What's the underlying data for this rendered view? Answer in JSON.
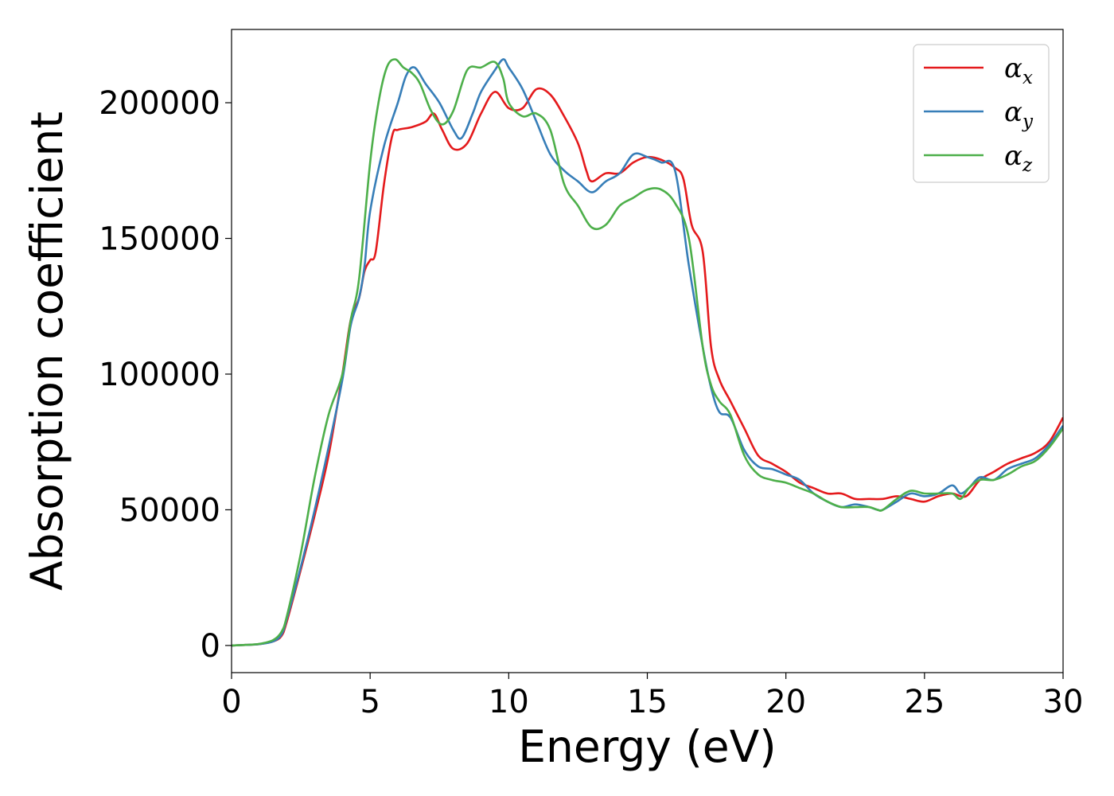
{
  "chart_data": {
    "type": "line",
    "title": "",
    "xlabel": "Energy (eV)",
    "ylabel": "Absorption coefficient",
    "xlim": [
      0,
      30
    ],
    "ylim": [
      -10000,
      227000
    ],
    "xticks": [
      0,
      5,
      10,
      15,
      20,
      25,
      30
    ],
    "yticks": [
      0,
      50000,
      100000,
      150000,
      200000
    ],
    "xtick_labels": [
      "0",
      "5",
      "10",
      "15",
      "20",
      "25",
      "30"
    ],
    "ytick_labels": [
      "0",
      "50000",
      "100000",
      "150000",
      "200000"
    ],
    "grid": false,
    "legend_position": "top-right",
    "series": [
      {
        "name": "αx",
        "symbol": "α",
        "subscript": "x",
        "color": "#e41a1c",
        "x": [
          0,
          0.5,
          1,
          1.5,
          1.8,
          2,
          2.5,
          3,
          3.5,
          4,
          4.3,
          4.6,
          4.8,
          5,
          5.2,
          5.5,
          5.8,
          6,
          6.5,
          7,
          7.3,
          7.6,
          8,
          8.5,
          9,
          9.5,
          10,
          10.5,
          11,
          11.5,
          12,
          12.5,
          12.8,
          13,
          13.5,
          14,
          14.5,
          15,
          15.5,
          16,
          16.3,
          16.6,
          17,
          17.3,
          17.6,
          18,
          18.5,
          19,
          19.5,
          20,
          20.5,
          21,
          21.5,
          22,
          22.5,
          23,
          23.5,
          24,
          24.5,
          25,
          25.5,
          26,
          26.5,
          27,
          27.5,
          28,
          28.5,
          29,
          29.5,
          30
        ],
        "values": [
          0,
          200,
          500,
          1500,
          3500,
          9000,
          28000,
          48000,
          70000,
          100000,
          120000,
          128000,
          138000,
          142000,
          145000,
          170000,
          188000,
          190000,
          191000,
          193000,
          196000,
          190000,
          183000,
          185000,
          196000,
          204000,
          198000,
          198000,
          205000,
          203000,
          195000,
          185000,
          175000,
          171000,
          174000,
          174000,
          178000,
          180000,
          179000,
          176000,
          172000,
          155000,
          145000,
          110000,
          98000,
          90000,
          80000,
          70000,
          67000,
          64000,
          60000,
          58000,
          56000,
          56000,
          54000,
          54000,
          54000,
          55000,
          54000,
          53000,
          55000,
          56000,
          55000,
          61000,
          64000,
          67000,
          69000,
          71000,
          75000,
          84000
        ]
      },
      {
        "name": "αy",
        "symbol": "α",
        "subscript": "y",
        "color": "#377eb8",
        "x": [
          0,
          0.5,
          1,
          1.5,
          1.8,
          2,
          2.5,
          3,
          3.5,
          4,
          4.3,
          4.6,
          4.8,
          5,
          5.5,
          6,
          6.3,
          6.6,
          7,
          7.5,
          8,
          8.3,
          8.7,
          9,
          9.5,
          9.8,
          10,
          10.5,
          11,
          11.5,
          12,
          12.5,
          13,
          13.5,
          14,
          14.5,
          15,
          15.5,
          16,
          16.5,
          17,
          17.3,
          17.6,
          18,
          18.5,
          19,
          19.5,
          20,
          20.5,
          21,
          21.5,
          22,
          22.5,
          23,
          23.3,
          23.5,
          24,
          24.5,
          25,
          25.5,
          26,
          26.3,
          26.6,
          27,
          27.5,
          28,
          28.5,
          29,
          29.5,
          30
        ],
        "values": [
          0,
          200,
          500,
          1500,
          4000,
          10000,
          29000,
          50000,
          73000,
          98000,
          118000,
          128000,
          140000,
          160000,
          184000,
          200000,
          210000,
          213000,
          207000,
          200000,
          190000,
          187000,
          196000,
          204000,
          212000,
          216000,
          213000,
          205000,
          193000,
          181000,
          175000,
          171000,
          167000,
          171000,
          174000,
          181000,
          180000,
          178000,
          175000,
          140000,
          110000,
          95000,
          86000,
          84000,
          72000,
          66000,
          65000,
          63000,
          61000,
          56000,
          53000,
          51000,
          52000,
          51000,
          50000,
          50000,
          53000,
          56000,
          55000,
          56000,
          59000,
          56000,
          58000,
          62000,
          61000,
          65000,
          67000,
          69000,
          74000,
          81000
        ]
      },
      {
        "name": "αz",
        "symbol": "α",
        "subscript": "z",
        "color": "#4daf4a",
        "x": [
          0,
          0.5,
          1,
          1.5,
          1.8,
          2,
          2.5,
          3,
          3.5,
          4,
          4.3,
          4.6,
          5,
          5.3,
          5.6,
          5.9,
          6.2,
          6.5,
          6.8,
          7.2,
          7.6,
          8,
          8.5,
          9,
          9.5,
          9.8,
          10,
          10.5,
          11,
          11.5,
          12,
          12.5,
          13,
          13.5,
          14,
          14.5,
          15,
          15.5,
          16,
          16.5,
          17,
          17.3,
          17.6,
          18,
          18.5,
          19,
          19.5,
          20,
          20.5,
          21,
          21.5,
          22,
          22.5,
          23,
          23.3,
          23.5,
          24,
          24.5,
          25,
          25.5,
          26,
          26.3,
          26.6,
          27,
          27.5,
          28,
          28.5,
          29,
          29.5,
          30
        ],
        "values": [
          0,
          200,
          600,
          2000,
          5000,
          11000,
          34000,
          62000,
          85000,
          100000,
          120000,
          135000,
          178000,
          200000,
          213000,
          216000,
          213000,
          211000,
          207000,
          197000,
          192000,
          197000,
          212000,
          213000,
          215000,
          209000,
          200000,
          195000,
          196000,
          190000,
          170000,
          162000,
          154000,
          155000,
          162000,
          165000,
          168000,
          168000,
          163000,
          150000,
          110000,
          96000,
          90000,
          85000,
          70000,
          63000,
          61000,
          60000,
          58000,
          56000,
          53000,
          51000,
          51000,
          51000,
          50000,
          50000,
          54000,
          57000,
          56000,
          56000,
          56000,
          54000,
          58000,
          61000,
          61000,
          63000,
          66000,
          68000,
          73000,
          80000
        ]
      }
    ]
  }
}
